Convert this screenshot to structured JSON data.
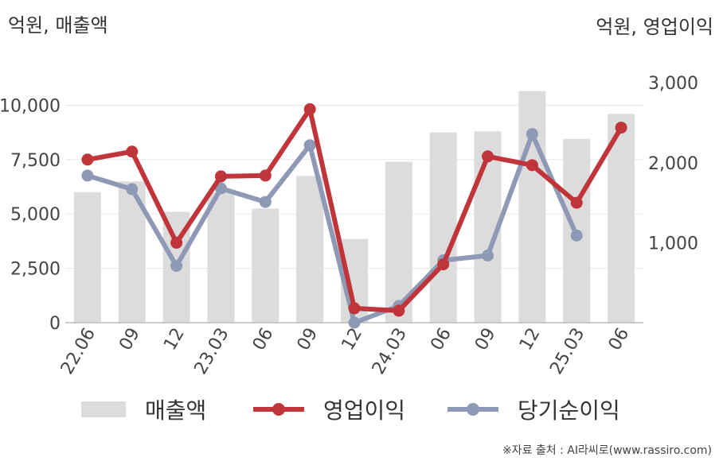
{
  "chart_data": {
    "type": "bar+line",
    "left_axis_label": "억원, 매출액",
    "right_axis_label": "억원, 영업이익",
    "categories": [
      "22.06",
      "09",
      "12",
      "23.03",
      "06",
      "09",
      "12",
      "24.03",
      "06",
      "09",
      "12",
      "25.03",
      "06"
    ],
    "left_ylim": [
      0,
      12500
    ],
    "left_ticks": [
      "0",
      "2,500",
      "5,000",
      "7,500",
      "10,000"
    ],
    "left_tick_values": [
      0,
      2500,
      5000,
      7500,
      10000
    ],
    "right_ylim": [
      0,
      3400
    ],
    "right_ticks": [
      "1,000",
      "2,000",
      "3,000"
    ],
    "right_tick_values": [
      1000,
      2000,
      3000
    ],
    "grid": true,
    "legend_position": "bottom",
    "series": [
      {
        "name": "매출액",
        "type": "bar",
        "axis": "left",
        "color": "#dcdcdc",
        "values": [
          6000,
          6500,
          5100,
          6000,
          5250,
          6750,
          3850,
          7400,
          8750,
          8800,
          10650,
          8450,
          9600
        ]
      },
      {
        "name": "영업이익",
        "type": "line",
        "axis": "right",
        "color": "#c0353a",
        "values": [
          2040,
          2140,
          1000,
          1830,
          1840,
          2670,
          180,
          150,
          730,
          2080,
          1970,
          1500,
          2440
        ]
      },
      {
        "name": "당기순이익",
        "type": "line",
        "axis": "right",
        "color": "#8e9ab5",
        "values": [
          1840,
          1670,
          710,
          1680,
          1510,
          2220,
          0,
          210,
          780,
          840,
          2360,
          1090,
          null
        ]
      }
    ]
  },
  "source": "※자료 출처 : AI라씨로(www.rassiro.com)"
}
